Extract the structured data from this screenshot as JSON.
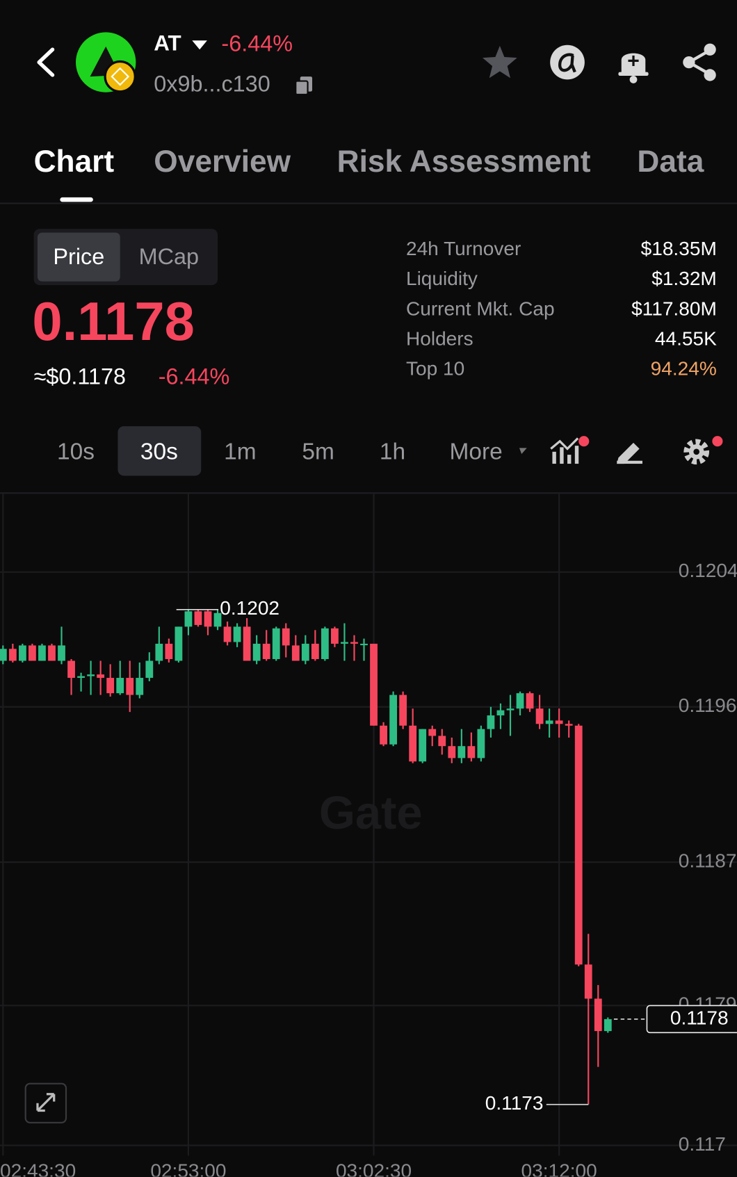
{
  "header": {
    "symbol": "AT",
    "change": "-6.44%",
    "address": "0x9b...c130"
  },
  "tabs": [
    "Chart",
    "Overview",
    "Risk Assessment",
    "Data"
  ],
  "toggle": [
    "Price",
    "MCap"
  ],
  "price": {
    "value": "0.1178",
    "usd": "≈$0.1178",
    "change": "-6.44%"
  },
  "stats": [
    {
      "label": "24h Turnover",
      "value": "$18.35M"
    },
    {
      "label": "Liquidity",
      "value": "$1.32M"
    },
    {
      "label": "Current Mkt. Cap",
      "value": "$117.80M"
    },
    {
      "label": "Holders",
      "value": "44.55K"
    },
    {
      "label": "Top 10",
      "value": "94.24%"
    }
  ],
  "intervals": [
    "10s",
    "30s",
    "1m",
    "5m",
    "1h",
    "More"
  ],
  "chart_data": {
    "type": "candlestick",
    "watermark": "Gate",
    "up_color": "#2ebd85",
    "down_color": "#f6465d",
    "grid": true,
    "categories": [
      "02:43:30",
      null,
      null,
      null,
      null,
      null,
      null,
      null,
      null,
      null,
      null,
      null,
      null,
      null,
      null,
      null,
      null,
      null,
      null,
      "02:53:00",
      null,
      null,
      null,
      null,
      null,
      null,
      null,
      null,
      null,
      null,
      null,
      null,
      null,
      null,
      null,
      null,
      null,
      null,
      "03:02:30",
      null,
      null,
      null,
      null,
      null,
      null,
      null,
      null,
      null,
      null,
      null,
      null,
      null,
      null,
      null,
      null,
      null,
      null,
      "03:12:00",
      null,
      null,
      null,
      null,
      null
    ],
    "open": [
      0.1199,
      0.11997,
      0.1199,
      0.11999,
      0.1199,
      0.11999,
      0.1199,
      0.1199,
      0.1198,
      0.11981,
      0.11982,
      0.1198,
      0.11971,
      0.1198,
      0.1197,
      0.1198,
      0.1199,
      0.12,
      0.1199,
      0.1201,
      0.12019,
      0.12019,
      0.1201,
      0.1201,
      0.12001,
      0.1201,
      0.1199,
      0.12,
      0.11991,
      0.12009,
      0.11999,
      0.1199,
      0.12,
      0.11991,
      0.12009,
      0.12,
      0.12001,
      0.12,
      0.12,
      0.11952,
      0.11941,
      0.1197,
      0.11952,
      0.11931,
      0.1195,
      0.11946,
      0.1194,
      0.11933,
      0.1194,
      0.11933,
      0.1195,
      0.11958,
      0.11961,
      0.11962,
      0.11971,
      0.11962,
      0.11953,
      0.11955,
      0.11953,
      0.11952,
      0.11812,
      0.11792,
      0.11773
    ],
    "high": [
      0.11999,
      0.12,
      0.12,
      0.12,
      0.12,
      0.12,
      0.1201,
      0.11991,
      0.11983,
      0.1199,
      0.1199,
      0.11988,
      0.1199,
      0.1199,
      0.11989,
      0.11995,
      0.1201,
      0.12003,
      0.1201,
      0.1202,
      0.1202,
      0.1202,
      0.1202,
      0.12013,
      0.12012,
      0.12015,
      0.12005,
      0.12008,
      0.1201,
      0.12012,
      0.12005,
      0.12005,
      0.12008,
      0.1201,
      0.1201,
      0.12012,
      0.12005,
      0.12003,
      0.12,
      0.11954,
      0.11972,
      0.11972,
      0.11962,
      0.1195,
      0.11952,
      0.1195,
      0.11945,
      0.1195,
      0.11948,
      0.11952,
      0.11963,
      0.11965,
      0.1197,
      0.11972,
      0.11972,
      0.1197,
      0.11962,
      0.11962,
      0.11955,
      0.11953,
      0.1183,
      0.118,
      0.11781
    ],
    "low": [
      0.11988,
      0.11989,
      0.11989,
      0.1199,
      0.1199,
      0.1199,
      0.11988,
      0.1197,
      0.11972,
      0.1197,
      0.1197,
      0.11969,
      0.1197,
      0.1196,
      0.11968,
      0.11978,
      0.11988,
      0.11989,
      0.11989,
      0.12005,
      0.1201,
      0.12005,
      0.12008,
      0.11999,
      0.11998,
      0.1199,
      0.11988,
      0.1199,
      0.1199,
      0.11992,
      0.1199,
      0.11988,
      0.1199,
      0.1199,
      0.11998,
      0.1199,
      0.1199,
      0.1199,
      0.11952,
      0.1194,
      0.1194,
      0.1195,
      0.1193,
      0.1193,
      0.1194,
      0.11935,
      0.1193,
      0.1193,
      0.11931,
      0.11931,
      0.11945,
      0.1195,
      0.11946,
      0.11958,
      0.1196,
      0.1195,
      0.11945,
      0.11945,
      0.11945,
      0.11811,
      0.1173,
      0.11752,
      0.11772
    ],
    "close": [
      0.11997,
      0.1199,
      0.11999,
      0.1199,
      0.11999,
      0.1199,
      0.11999,
      0.1198,
      0.11981,
      0.11982,
      0.1198,
      0.11971,
      0.1198,
      0.1197,
      0.1198,
      0.1199,
      0.12,
      0.11991,
      0.1201,
      0.12019,
      0.12011,
      0.1201,
      0.12018,
      0.12001,
      0.1201,
      0.1199,
      0.12,
      0.11991,
      0.12009,
      0.11999,
      0.1199,
      0.12,
      0.11991,
      0.12009,
      0.12,
      0.12001,
      0.12,
      0.12,
      0.11952,
      0.11941,
      0.1197,
      0.11952,
      0.11931,
      0.1195,
      0.11946,
      0.1194,
      0.11933,
      0.1194,
      0.11933,
      0.1195,
      0.11958,
      0.11961,
      0.11962,
      0.11971,
      0.11962,
      0.11953,
      0.11955,
      0.11953,
      0.11952,
      0.11812,
      0.11792,
      0.11773,
      0.1178
    ],
    "ylim": [
      0.117,
      0.12087
    ],
    "yticks": [
      {
        "value": 0.12042,
        "label": "0.1204"
      },
      {
        "value": 0.11963,
        "label": "0.1196"
      },
      {
        "value": 0.11872,
        "label": "0.1187"
      },
      {
        "value": 0.11788,
        "label": "0.1179"
      },
      {
        "value": 0.11706,
        "label": "0.117"
      }
    ]
  }
}
